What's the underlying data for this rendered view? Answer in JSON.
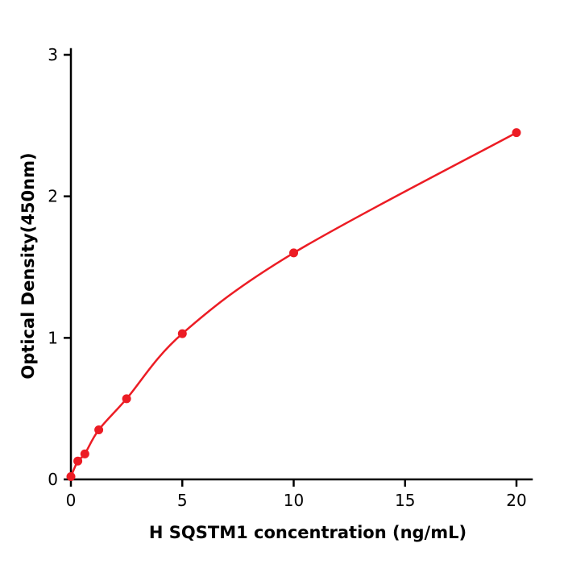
{
  "chart_data": {
    "type": "scatter",
    "title": "",
    "xlabel": "H  SQSTM1 concentration (ng/mL)",
    "ylabel": "Optical Density(450nm)",
    "x": [
      0,
      0.3125,
      0.625,
      1.25,
      2.5,
      5,
      10,
      20
    ],
    "y": [
      0.02,
      0.13,
      0.18,
      0.35,
      0.57,
      1.03,
      1.6,
      2.45
    ],
    "xlim": [
      0,
      20
    ],
    "ylim": [
      0,
      3
    ],
    "xticks": [
      0,
      5,
      10,
      15,
      20
    ],
    "yticks": [
      0,
      1,
      2,
      3
    ],
    "grid": false,
    "legend": "none",
    "curve": "smooth",
    "marker": "circle",
    "series_color": "#ec1c24",
    "axis_color": "#000000"
  }
}
